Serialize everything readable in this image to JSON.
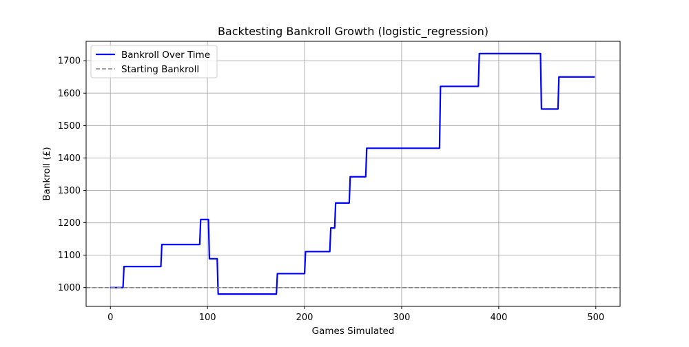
{
  "chart_data": {
    "type": "line",
    "title": "Backtesting Bankroll Growth (logistic_regression)",
    "xlabel": "Games Simulated",
    "ylabel": "Bankroll (£)",
    "xlim": [
      -25,
      525
    ],
    "ylim": [
      942,
      1760
    ],
    "xticks": [
      0,
      100,
      200,
      300,
      400,
      500
    ],
    "yticks": [
      1000,
      1100,
      1200,
      1300,
      1400,
      1500,
      1600,
      1700
    ],
    "grid": true,
    "legend_position": "upper-left",
    "series": [
      {
        "name": "Bankroll Over Time",
        "color": "#0000ff",
        "style": "solid",
        "x": [
          0,
          13,
          14,
          52,
          53,
          92,
          93,
          101,
          102,
          110,
          111,
          171,
          172,
          200,
          201,
          226,
          227,
          231,
          232,
          246,
          247,
          263,
          264,
          339,
          340,
          379,
          380,
          443,
          444,
          461,
          462,
          499
        ],
        "y": [
          1000,
          1000,
          1065,
          1065,
          1133,
          1133,
          1210,
          1210,
          1089,
          1089,
          980,
          980,
          1043,
          1043,
          1111,
          1111,
          1184,
          1184,
          1261,
          1261,
          1342,
          1342,
          1430,
          1430,
          1621,
          1621,
          1722,
          1722,
          1551,
          1551,
          1650,
          1650
        ]
      },
      {
        "name": "Starting Bankroll",
        "color": "#808080",
        "style": "dashed",
        "hline": 1000
      }
    ]
  }
}
